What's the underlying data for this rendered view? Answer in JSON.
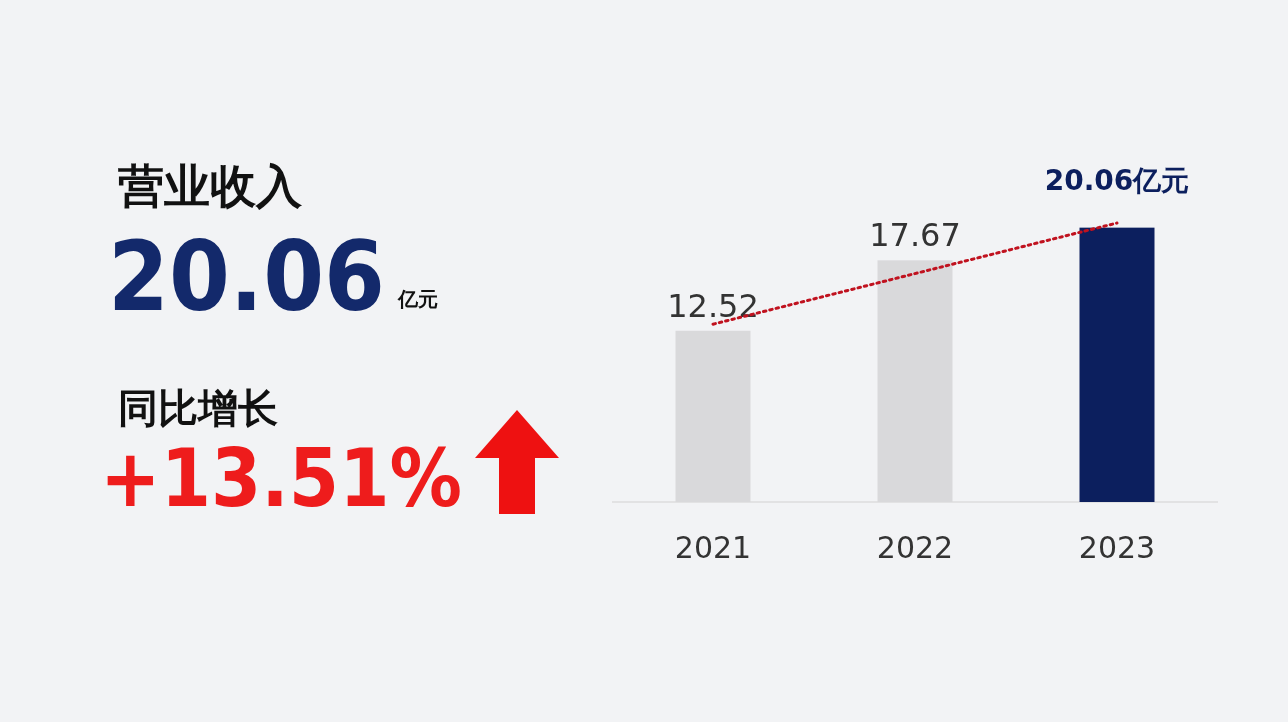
{
  "chart_data": [
    {
      "type": "other",
      "annotations": [
        "营业收入",
        "20.06",
        "亿元",
        "同比增长",
        "+13.51%"
      ]
    },
    {
      "type": "bar",
      "categories": [
        "2021",
        "2022",
        "2023"
      ],
      "series": [
        {
          "type": "bar",
          "colors": [
            "#d9d9db",
            "#d9d9db",
            "#0c1f5e"
          ],
          "values": [
            12.52,
            17.67,
            20.06
          ],
          "value_labels": [
            "12.52",
            "17.67",
            "20.06亿元"
          ]
        },
        {
          "type": "line",
          "color": "#c0121f",
          "line_style": "dotted",
          "marker": "none",
          "values": [
            13.0,
            16.7,
            20.4
          ]
        }
      ]
    }
  ]
}
